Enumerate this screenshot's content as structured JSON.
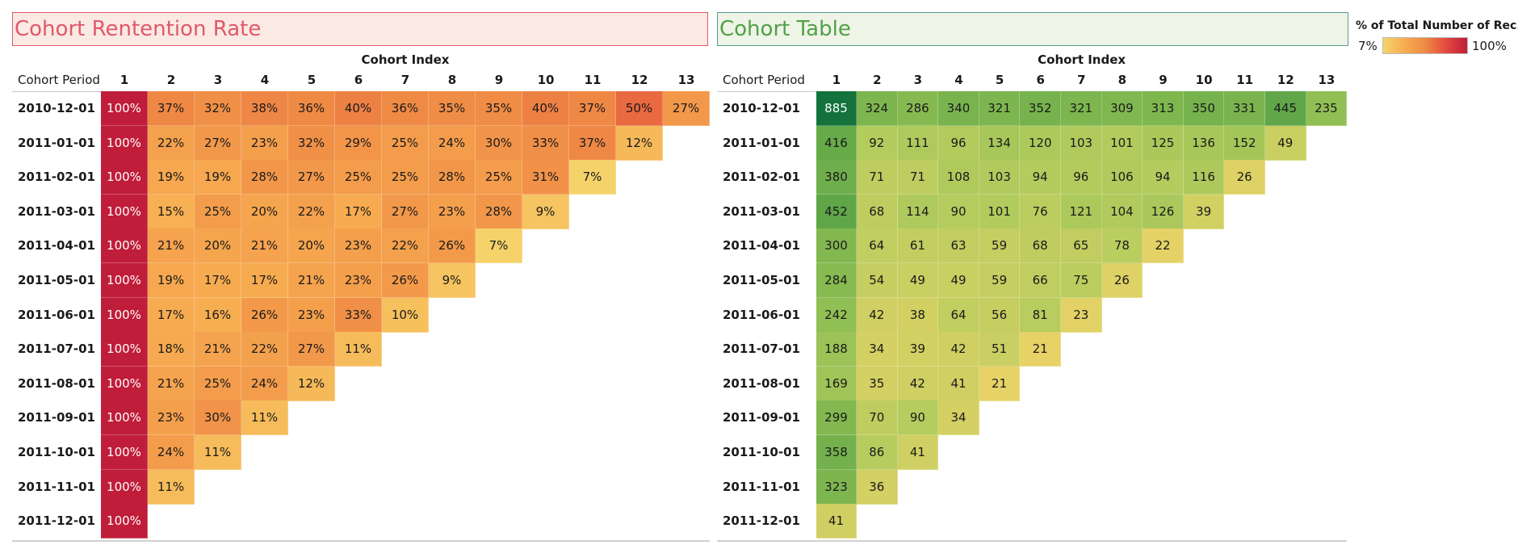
{
  "left_panel": {
    "title": "Cohort Rentention Rate"
  },
  "right_panel": {
    "title": "Cohort Table"
  },
  "legend": {
    "title": "% of Total Number of Rec..",
    "min_label": "7%",
    "max_label": "100%"
  },
  "colors": {
    "rate_scale": [
      "#f5d36a",
      "#f7ad51",
      "#ef8a45",
      "#e34a3e",
      "#c01d3a"
    ],
    "count_scale": [
      "#ecd368",
      "#b5cc5e",
      "#8cbd52",
      "#4f9e45",
      "#14733c"
    ]
  },
  "chart_data": [
    {
      "type": "heatmap",
      "title": "Cohort Rentention Rate",
      "xlabel": "Cohort Index",
      "row_header": "Cohort Period",
      "columns": [
        "1",
        "2",
        "3",
        "4",
        "5",
        "6",
        "7",
        "8",
        "9",
        "10",
        "11",
        "12",
        "13"
      ],
      "rows": [
        "2010-12-01",
        "2011-01-01",
        "2011-02-01",
        "2011-03-01",
        "2011-04-01",
        "2011-05-01",
        "2011-06-01",
        "2011-07-01",
        "2011-08-01",
        "2011-09-01",
        "2011-10-01",
        "2011-11-01",
        "2011-12-01"
      ],
      "unit": "%",
      "values": [
        [
          100,
          37,
          32,
          38,
          36,
          40,
          36,
          35,
          35,
          40,
          37,
          50,
          27
        ],
        [
          100,
          22,
          27,
          23,
          32,
          29,
          25,
          24,
          30,
          33,
          37,
          12
        ],
        [
          100,
          19,
          19,
          28,
          27,
          25,
          25,
          28,
          25,
          31,
          7
        ],
        [
          100,
          15,
          25,
          20,
          22,
          17,
          27,
          23,
          28,
          9
        ],
        [
          100,
          21,
          20,
          21,
          20,
          23,
          22,
          26,
          7
        ],
        [
          100,
          19,
          17,
          17,
          21,
          23,
          26,
          9
        ],
        [
          100,
          17,
          16,
          26,
          23,
          33,
          10
        ],
        [
          100,
          18,
          21,
          22,
          27,
          11
        ],
        [
          100,
          21,
          25,
          24,
          12
        ],
        [
          100,
          23,
          30,
          11
        ],
        [
          100,
          24,
          11
        ],
        [
          100,
          11
        ],
        [
          100
        ]
      ]
    },
    {
      "type": "heatmap",
      "title": "Cohort Table",
      "xlabel": "Cohort Index",
      "row_header": "Cohort Period",
      "columns": [
        "1",
        "2",
        "3",
        "4",
        "5",
        "6",
        "7",
        "8",
        "9",
        "10",
        "11",
        "12",
        "13"
      ],
      "rows": [
        "2010-12-01",
        "2011-01-01",
        "2011-02-01",
        "2011-03-01",
        "2011-04-01",
        "2011-05-01",
        "2011-06-01",
        "2011-07-01",
        "2011-08-01",
        "2011-09-01",
        "2011-10-01",
        "2011-11-01",
        "2011-12-01"
      ],
      "unit": "",
      "values": [
        [
          885,
          324,
          286,
          340,
          321,
          352,
          321,
          309,
          313,
          350,
          331,
          445,
          235
        ],
        [
          416,
          92,
          111,
          96,
          134,
          120,
          103,
          101,
          125,
          136,
          152,
          49
        ],
        [
          380,
          71,
          71,
          108,
          103,
          94,
          96,
          106,
          94,
          116,
          26
        ],
        [
          452,
          68,
          114,
          90,
          101,
          76,
          121,
          104,
          126,
          39
        ],
        [
          300,
          64,
          61,
          63,
          59,
          68,
          65,
          78,
          22
        ],
        [
          284,
          54,
          49,
          49,
          59,
          66,
          75,
          26
        ],
        [
          242,
          42,
          38,
          64,
          56,
          81,
          23
        ],
        [
          188,
          34,
          39,
          42,
          51,
          21
        ],
        [
          169,
          35,
          42,
          41,
          21
        ],
        [
          299,
          70,
          90,
          34
        ],
        [
          358,
          86,
          41
        ],
        [
          323,
          36
        ],
        [
          41
        ]
      ]
    }
  ]
}
